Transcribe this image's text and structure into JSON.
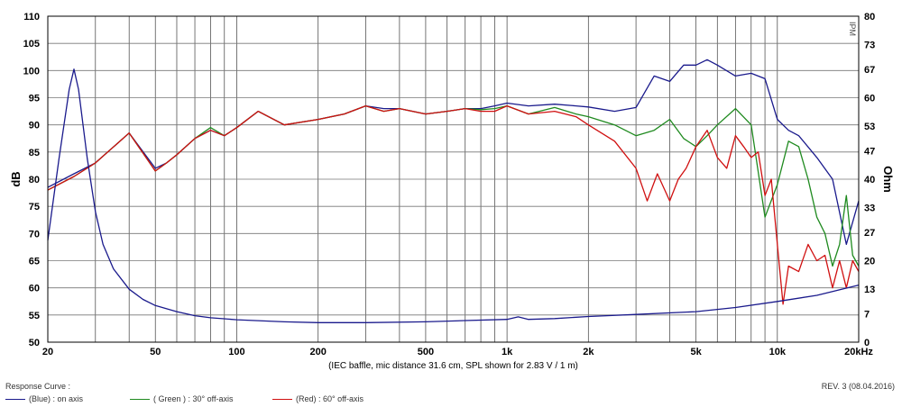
{
  "chart_data": {
    "type": "line",
    "caption": "(IEC baffle, mic distance 31.6 cm, SPL shown for 2.83 V / 1 m)",
    "left_axis": {
      "label": "dB",
      "min": 50,
      "max": 110,
      "ticks": [
        "50",
        "55",
        "60",
        "65",
        "70",
        "75",
        "80",
        "85",
        "90",
        "95",
        "100",
        "105",
        "110"
      ]
    },
    "right_axis": {
      "label": "Ohm",
      "min": 0,
      "max": 80,
      "ticks": [
        "0",
        "7",
        "13",
        "20",
        "27",
        "33",
        "40",
        "47",
        "53",
        "60",
        "67",
        "73",
        "80"
      ]
    },
    "x_axis": {
      "scale": "log",
      "min": 20,
      "max": 20000,
      "ticks": [
        {
          "v": 20,
          "t": "20"
        },
        {
          "v": 50,
          "t": "50"
        },
        {
          "v": 100,
          "t": "100"
        },
        {
          "v": 200,
          "t": "200"
        },
        {
          "v": 500,
          "t": "500"
        },
        {
          "v": 1000,
          "t": "1k"
        },
        {
          "v": 2000,
          "t": "2k"
        },
        {
          "v": 5000,
          "t": "5k"
        },
        {
          "v": 10000,
          "t": "10k"
        },
        {
          "v": 20000,
          "t": "20kHz"
        }
      ]
    },
    "grid": true,
    "watermark": "IPM",
    "series": [
      {
        "name": "(Blue) : on axis",
        "color": "#1a1a8c",
        "axis": "left",
        "x": [
          20,
          25,
          30,
          40,
          50,
          55,
          60,
          70,
          80,
          90,
          100,
          120,
          150,
          200,
          250,
          300,
          350,
          400,
          500,
          600,
          700,
          800,
          900,
          1000,
          1200,
          1500,
          1800,
          2000,
          2500,
          3000,
          3500,
          4000,
          4500,
          5000,
          5500,
          6000,
          7000,
          8000,
          9000,
          10000,
          11000,
          12000,
          14000,
          16000,
          18000,
          20000
        ],
        "y": [
          78.5,
          81,
          83,
          88.5,
          82,
          83,
          84.5,
          87.5,
          89,
          88,
          89.5,
          92.5,
          90,
          91,
          92,
          93.5,
          93,
          93,
          92,
          92.5,
          93,
          93,
          93.5,
          94,
          93.5,
          93.8,
          93.5,
          93.3,
          92.5,
          93.2,
          99,
          98,
          101,
          101,
          102,
          101,
          99,
          99.5,
          98.5,
          91,
          89,
          88,
          84,
          80,
          68,
          76
        ]
      },
      {
        "name": "( Green ) : 30° off-axis",
        "color": "#1f8a1f",
        "axis": "left",
        "x": [
          20,
          25,
          30,
          40,
          50,
          55,
          60,
          70,
          80,
          90,
          100,
          120,
          150,
          200,
          250,
          300,
          350,
          400,
          500,
          600,
          700,
          800,
          900,
          1000,
          1200,
          1500,
          1800,
          2000,
          2500,
          3000,
          3500,
          4000,
          4500,
          5000,
          5500,
          6000,
          7000,
          8000,
          9000,
          10000,
          11000,
          12000,
          13000,
          14000,
          15000,
          16000,
          17000,
          18000,
          19000,
          20000
        ],
        "y": [
          78,
          80.5,
          83,
          88.5,
          81.5,
          83,
          84.5,
          87.5,
          89.5,
          88,
          89.5,
          92.5,
          90,
          91,
          92,
          93.5,
          92.5,
          93,
          92,
          92.5,
          93,
          92.8,
          93,
          93.5,
          92,
          93.2,
          92,
          91.5,
          90,
          88,
          89,
          91,
          87.5,
          86,
          88,
          90,
          93,
          90,
          73,
          79,
          87,
          86,
          80,
          73,
          70,
          64,
          68,
          77,
          66,
          64
        ]
      },
      {
        "name": "(Red) : 60° off-axis",
        "color": "#d01010",
        "axis": "left",
        "x": [
          20,
          25,
          30,
          40,
          50,
          55,
          60,
          70,
          80,
          90,
          100,
          120,
          150,
          200,
          250,
          300,
          350,
          400,
          500,
          600,
          700,
          800,
          900,
          1000,
          1200,
          1500,
          1800,
          2000,
          2500,
          3000,
          3300,
          3600,
          4000,
          4300,
          4600,
          5000,
          5500,
          6000,
          6500,
          7000,
          7500,
          8000,
          8500,
          9000,
          9500,
          10000,
          10500,
          11000,
          12000,
          13000,
          14000,
          15000,
          16000,
          17000,
          18000,
          19000,
          20000
        ],
        "y": [
          78,
          80.5,
          83,
          88.5,
          81.5,
          83,
          84.5,
          87.5,
          89,
          88,
          89.5,
          92.5,
          90,
          91,
          92,
          93.5,
          92.5,
          93,
          92,
          92.5,
          93,
          92.5,
          92.5,
          93.5,
          92,
          92.5,
          91.5,
          90,
          87,
          82,
          76,
          81,
          76,
          80,
          82,
          86,
          89,
          84,
          82,
          88,
          86,
          84,
          85,
          77,
          80,
          68,
          57,
          64,
          63,
          68,
          65,
          66,
          60,
          65,
          60,
          65,
          63
        ]
      },
      {
        "name": "Impedance",
        "color": "#1a1a8c",
        "axis": "right",
        "x": [
          20,
          22,
          24,
          25,
          26,
          28,
          30,
          32,
          35,
          40,
          45,
          50,
          60,
          70,
          80,
          100,
          150,
          200,
          300,
          500,
          700,
          1000,
          1100,
          1200,
          1500,
          2000,
          3000,
          5000,
          7000,
          10000,
          14000,
          20000
        ],
        "y": [
          25,
          45,
          62,
          67,
          62,
          45,
          32,
          24,
          18,
          13,
          10.5,
          9,
          7.5,
          6.5,
          6,
          5.5,
          5,
          4.8,
          4.8,
          5,
          5.3,
          5.6,
          6.2,
          5.6,
          5.8,
          6.3,
          6.8,
          7.5,
          8.5,
          10,
          11.5,
          14
        ]
      }
    ]
  },
  "legend": {
    "title": "Response Curve :",
    "items": [
      {
        "label": "(Blue) : on axis",
        "color": "#1a1a8c"
      },
      {
        "label": "( Green ) : 30° off-axis",
        "color": "#1f8a1f"
      },
      {
        "label": "(Red) : 60° off-axis",
        "color": "#d01010"
      }
    ]
  },
  "revision": "REV. 3 (08.04.2016)"
}
